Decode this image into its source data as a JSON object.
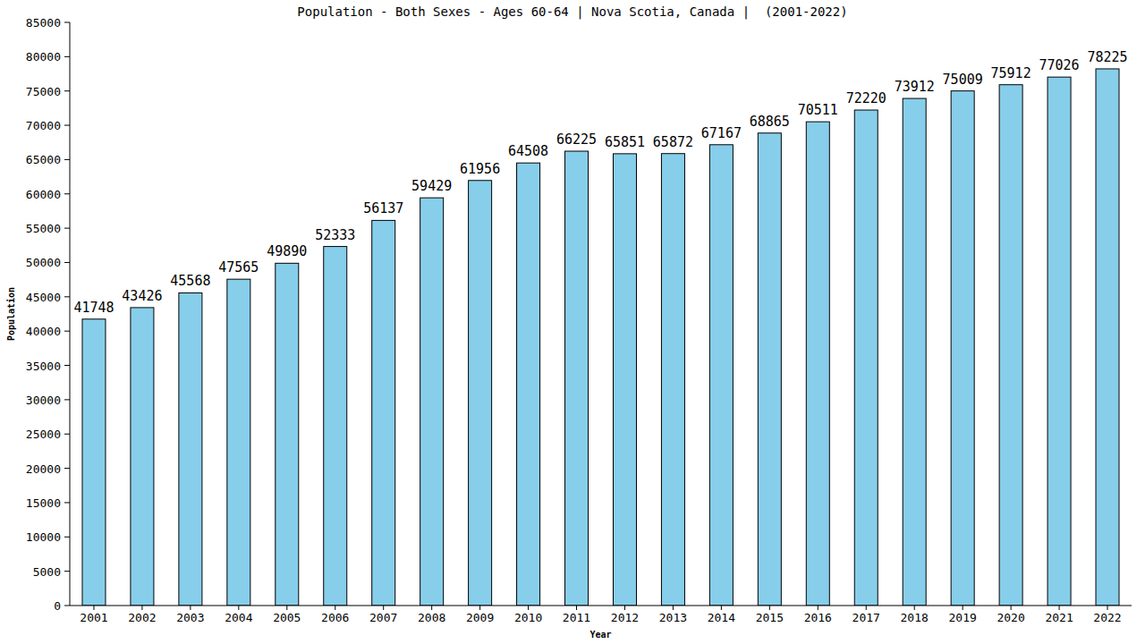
{
  "chart_data": {
    "type": "bar",
    "title": "Population - Both Sexes - Ages 60-64 | Nova Scotia, Canada |  (2001-2022)",
    "x_label": "Year",
    "y_label": "Population",
    "categories": [
      "2001",
      "2002",
      "2003",
      "2004",
      "2005",
      "2006",
      "2007",
      "2008",
      "2009",
      "2010",
      "2011",
      "2012",
      "2013",
      "2014",
      "2015",
      "2016",
      "2017",
      "2018",
      "2019",
      "2020",
      "2021",
      "2022"
    ],
    "values": [
      41748,
      43426,
      45568,
      47565,
      49890,
      52333,
      56137,
      59429,
      61956,
      64508,
      66225,
      65851,
      65872,
      67167,
      68865,
      70511,
      72220,
      73912,
      75009,
      75912,
      77026,
      78225
    ],
    "color": "#87ceeb",
    "ylim": [
      0,
      85000
    ],
    "yticks": [
      0,
      5000,
      10000,
      15000,
      20000,
      25000,
      30000,
      35000,
      40000,
      45000,
      50000,
      55000,
      60000,
      65000,
      70000,
      75000,
      80000,
      85000
    ],
    "grid": false,
    "data_labels": true
  }
}
